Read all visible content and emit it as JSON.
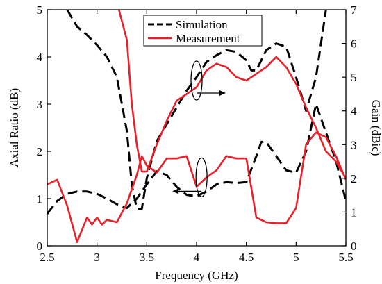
{
  "chart_data": {
    "type": "line",
    "title": "",
    "xlabel": "Frequency (GHz)",
    "ylabel_left": "Axial Ratio (dB)",
    "ylabel_right": "Gain (dBic)",
    "xlim": [
      2.5,
      5.5
    ],
    "ylim_left": [
      0,
      5
    ],
    "ylim_right": [
      0,
      7
    ],
    "x_ticks": [
      "2.5",
      "3",
      "3.5",
      "4",
      "4.5",
      "5",
      "5.5"
    ],
    "y_ticks_left": [
      "0",
      "1",
      "2",
      "3",
      "4",
      "5"
    ],
    "y_ticks_right": [
      "0",
      "1",
      "2",
      "3",
      "4",
      "5",
      "6",
      "7"
    ],
    "grid": false,
    "legend": {
      "placement": "top-center",
      "entries": [
        {
          "label": "Simulation",
          "color": "#000000",
          "style": "dashed"
        },
        {
          "label": "Measurement",
          "color": "#e8202a",
          "style": "solid"
        }
      ]
    },
    "series": [
      {
        "legend": "Simulation",
        "quantity": "axial-ratio",
        "axis": "left",
        "color": "#000000",
        "style": "dashed",
        "x": [
          2.5,
          2.6,
          2.7,
          2.8,
          2.9,
          3.0,
          3.1,
          3.2,
          3.3,
          3.4,
          3.5,
          3.6,
          3.7,
          3.8,
          3.9,
          4.0,
          4.1,
          4.2,
          4.3,
          4.4,
          4.5,
          4.6,
          4.65,
          4.7,
          4.8,
          4.9,
          5.0,
          5.1,
          5.2,
          5.3,
          5.4,
          5.5
        ],
        "y": [
          0.68,
          0.95,
          1.1,
          1.15,
          1.15,
          1.1,
          1.0,
          0.88,
          0.8,
          1.0,
          1.3,
          1.58,
          1.5,
          1.25,
          1.08,
          1.05,
          1.15,
          1.3,
          1.35,
          1.33,
          1.35,
          1.9,
          2.2,
          2.2,
          1.9,
          1.6,
          1.55,
          2.0,
          3.0,
          2.4,
          1.8,
          0.95
        ]
      },
      {
        "legend": "Simulation",
        "quantity": "gain",
        "axis": "right",
        "color": "#000000",
        "style": "dashed",
        "x": [
          2.7,
          2.8,
          2.9,
          3.0,
          3.1,
          3.2,
          3.3,
          3.35,
          3.4,
          3.45,
          3.5,
          3.6,
          3.7,
          3.8,
          3.9,
          4.0,
          4.1,
          4.2,
          4.3,
          4.4,
          4.5,
          4.55,
          4.6,
          4.65,
          4.7,
          4.8,
          4.9,
          5.0,
          5.1,
          5.2,
          5.3
        ],
        "y": [
          7.0,
          6.5,
          6.25,
          5.95,
          5.6,
          5.0,
          3.4,
          1.8,
          1.1,
          1.1,
          2.0,
          3.1,
          3.6,
          4.1,
          4.6,
          5.0,
          5.45,
          5.65,
          5.8,
          5.75,
          5.5,
          5.2,
          5.2,
          5.5,
          5.8,
          6.0,
          5.9,
          5.0,
          4.0,
          5.0,
          7.0
        ]
      },
      {
        "legend": "Measurement",
        "quantity": "axial-ratio",
        "axis": "left",
        "color": "#e8202a",
        "style": "solid",
        "x": [
          2.5,
          2.6,
          2.7,
          2.8,
          2.9,
          2.95,
          3.0,
          3.05,
          3.1,
          3.2,
          3.3,
          3.35,
          3.4,
          3.45,
          3.5,
          3.6,
          3.7,
          3.8,
          3.9,
          4.0,
          4.1,
          4.2,
          4.3,
          4.4,
          4.5,
          4.6,
          4.7,
          4.8,
          4.9,
          5.0,
          5.1,
          5.2,
          5.3,
          5.4,
          5.5
        ],
        "y": [
          1.3,
          1.4,
          0.85,
          0.08,
          0.6,
          0.45,
          0.6,
          0.45,
          0.55,
          0.5,
          0.9,
          1.2,
          1.5,
          1.9,
          1.7,
          1.55,
          1.85,
          1.85,
          1.9,
          1.25,
          1.45,
          1.6,
          1.9,
          1.85,
          1.85,
          0.6,
          0.5,
          0.48,
          0.48,
          0.8,
          2.15,
          2.4,
          2.3,
          1.9,
          1.4
        ]
      },
      {
        "legend": "Measurement",
        "quantity": "gain",
        "axis": "right",
        "color": "#e8202a",
        "style": "solid",
        "x": [
          3.22,
          3.3,
          3.35,
          3.4,
          3.45,
          3.5,
          3.55,
          3.6,
          3.7,
          3.8,
          3.9,
          4.0,
          4.1,
          4.2,
          4.3,
          4.4,
          4.5,
          4.6,
          4.7,
          4.8,
          4.9,
          5.0,
          5.1,
          5.2,
          5.3,
          5.4,
          5.5
        ],
        "y": [
          7.0,
          6.1,
          4.2,
          3.0,
          2.2,
          2.2,
          2.6,
          3.0,
          3.7,
          4.3,
          4.5,
          4.7,
          5.2,
          5.4,
          5.3,
          5.0,
          4.9,
          5.1,
          5.3,
          5.6,
          5.3,
          4.8,
          4.1,
          3.5,
          2.8,
          2.5,
          2.0
        ]
      }
    ],
    "annotations": [
      {
        "kind": "ellipse-arrow",
        "points_to": "right-axis",
        "near_x": 4.0,
        "near_y_left": 3.5
      },
      {
        "kind": "ellipse-arrow",
        "points_to": "left-axis",
        "near_x": 4.05,
        "near_y_left": 1.45
      }
    ]
  }
}
